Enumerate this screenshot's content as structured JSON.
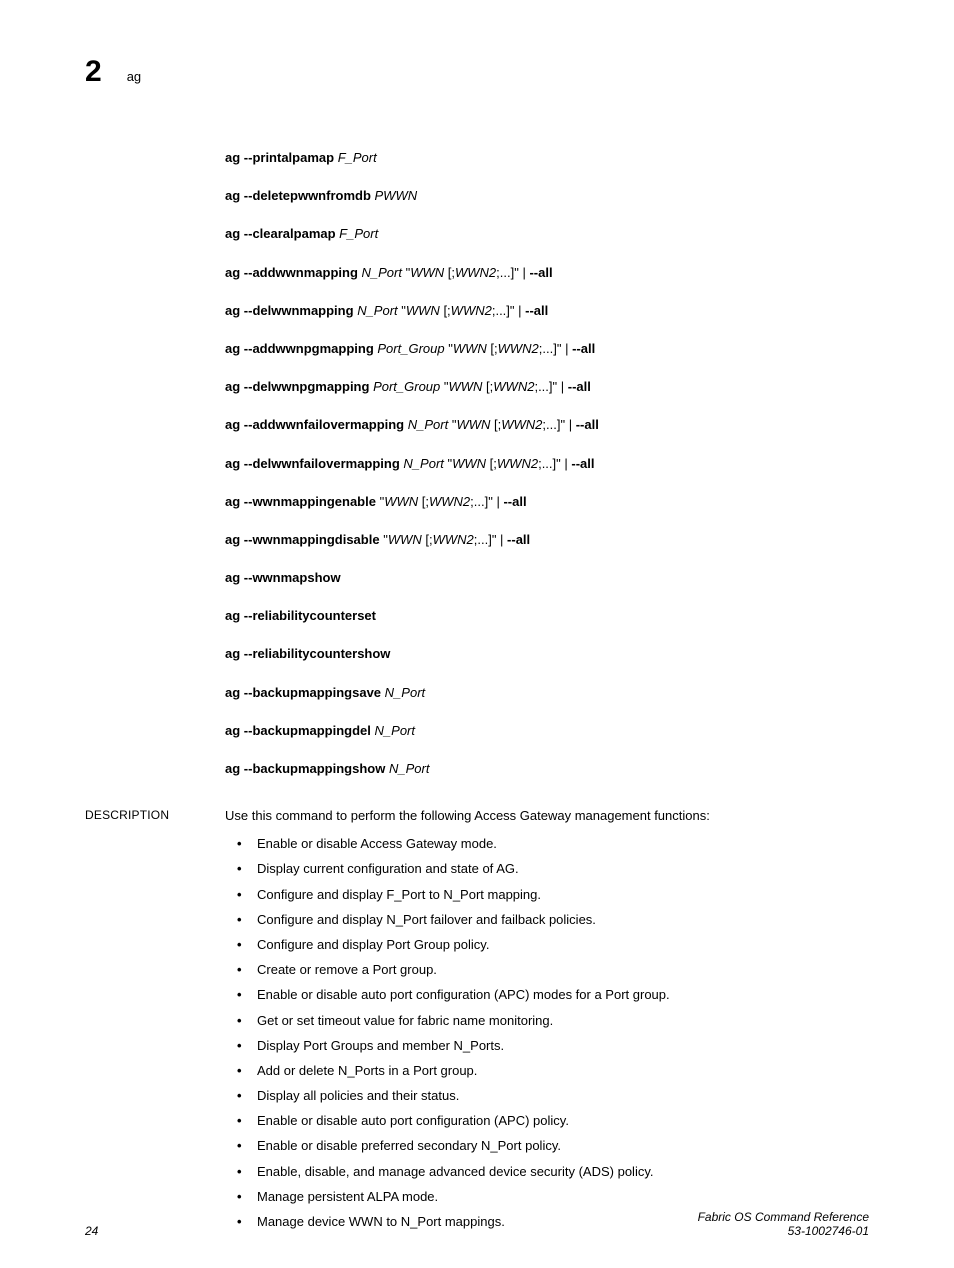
{
  "header": {
    "chapter_number": "2",
    "title": "ag"
  },
  "syntax": [
    [
      {
        "t": "b",
        "v": "ag --printalpamap"
      },
      {
        "t": "n",
        "v": " "
      },
      {
        "t": "i",
        "v": "F_Port"
      }
    ],
    [
      {
        "t": "b",
        "v": "ag --deletepwwnfromdb"
      },
      {
        "t": "n",
        "v": " "
      },
      {
        "t": "i",
        "v": "PWWN"
      }
    ],
    [
      {
        "t": "b",
        "v": "ag --clearalpamap"
      },
      {
        "t": "n",
        "v": " "
      },
      {
        "t": "i",
        "v": "F_Port"
      }
    ],
    [
      {
        "t": "b",
        "v": "ag --addwwnmapping"
      },
      {
        "t": "n",
        "v": " "
      },
      {
        "t": "i",
        "v": "N_Port"
      },
      {
        "t": "n",
        "v": " \""
      },
      {
        "t": "i",
        "v": "WWN"
      },
      {
        "t": "n",
        "v": " [;"
      },
      {
        "t": "i",
        "v": "WWN2"
      },
      {
        "t": "n",
        "v": ";...]\" | "
      },
      {
        "t": "b",
        "v": "--all"
      }
    ],
    [
      {
        "t": "b",
        "v": "ag --delwwnmapping"
      },
      {
        "t": "n",
        "v": " "
      },
      {
        "t": "i",
        "v": "N_Port"
      },
      {
        "t": "n",
        "v": " \""
      },
      {
        "t": "i",
        "v": "WWN"
      },
      {
        "t": "n",
        "v": " [;"
      },
      {
        "t": "i",
        "v": "WWN2"
      },
      {
        "t": "n",
        "v": ";...]\" | "
      },
      {
        "t": "b",
        "v": "--all"
      }
    ],
    [
      {
        "t": "b",
        "v": "ag --addwwnpgmapping"
      },
      {
        "t": "n",
        "v": " "
      },
      {
        "t": "i",
        "v": "Port_Group"
      },
      {
        "t": "n",
        "v": " \""
      },
      {
        "t": "i",
        "v": "WWN"
      },
      {
        "t": "n",
        "v": " [;"
      },
      {
        "t": "i",
        "v": "WWN2"
      },
      {
        "t": "n",
        "v": ";...]\" | "
      },
      {
        "t": "b",
        "v": "--all"
      }
    ],
    [
      {
        "t": "b",
        "v": "ag --delwwnpgmapping"
      },
      {
        "t": "n",
        "v": "  "
      },
      {
        "t": "i",
        "v": "Port_Group"
      },
      {
        "t": "n",
        "v": " \""
      },
      {
        "t": "i",
        "v": "WWN"
      },
      {
        "t": "n",
        "v": " [;"
      },
      {
        "t": "i",
        "v": "WWN2"
      },
      {
        "t": "n",
        "v": ";...]\" | "
      },
      {
        "t": "b",
        "v": "--all"
      }
    ],
    [
      {
        "t": "b",
        "v": "ag --addwwnfailovermapping"
      },
      {
        "t": "n",
        "v": " "
      },
      {
        "t": "i",
        "v": "N_Port"
      },
      {
        "t": "n",
        "v": " \""
      },
      {
        "t": "i",
        "v": "WWN"
      },
      {
        "t": "n",
        "v": " [;"
      },
      {
        "t": "i",
        "v": "WWN2"
      },
      {
        "t": "n",
        "v": ";...]\" | "
      },
      {
        "t": "b",
        "v": "--all"
      }
    ],
    [
      {
        "t": "b",
        "v": "ag --delwwnfailovermapping"
      },
      {
        "t": "n",
        "v": " "
      },
      {
        "t": "i",
        "v": "N_Port"
      },
      {
        "t": "n",
        "v": " \""
      },
      {
        "t": "i",
        "v": "WWN"
      },
      {
        "t": "n",
        "v": " [;"
      },
      {
        "t": "i",
        "v": "WWN2"
      },
      {
        "t": "n",
        "v": ";...]\" | "
      },
      {
        "t": "b",
        "v": "--all"
      }
    ],
    [
      {
        "t": "b",
        "v": "ag --wwnmappingenable"
      },
      {
        "t": "n",
        "v": " \""
      },
      {
        "t": "i",
        "v": "WWN"
      },
      {
        "t": "n",
        "v": " [;"
      },
      {
        "t": "i",
        "v": "WWN2"
      },
      {
        "t": "n",
        "v": ";...]\" | "
      },
      {
        "t": "b",
        "v": "--all"
      }
    ],
    [
      {
        "t": "b",
        "v": "ag --wwnmappingdisable"
      },
      {
        "t": "n",
        "v": " \""
      },
      {
        "t": "i",
        "v": "WWN"
      },
      {
        "t": "n",
        "v": " [;"
      },
      {
        "t": "i",
        "v": "WWN2"
      },
      {
        "t": "n",
        "v": ";...]\" | "
      },
      {
        "t": "b",
        "v": "--all"
      }
    ],
    [
      {
        "t": "b",
        "v": "ag --wwnmapshow"
      }
    ],
    [
      {
        "t": "b",
        "v": "ag --reliabilitycounterset"
      }
    ],
    [
      {
        "t": "b",
        "v": "ag --reliabilitycountershow"
      }
    ],
    [
      {
        "t": "b",
        "v": "ag --backupmappingsave"
      },
      {
        "t": "n",
        "v": " "
      },
      {
        "t": "i",
        "v": "N_Port"
      }
    ],
    [
      {
        "t": "b",
        "v": "ag --backupmappingdel"
      },
      {
        "t": "n",
        "v": " "
      },
      {
        "t": "i",
        "v": "N_Port"
      }
    ],
    [
      {
        "t": "b",
        "v": "ag --backupmappingshow"
      },
      {
        "t": "n",
        "v": " "
      },
      {
        "t": "i",
        "v": "N_Port"
      }
    ]
  ],
  "description": {
    "label": "DESCRIPTION",
    "intro": "Use this command to perform the following Access Gateway management functions:",
    "bullets": [
      "Enable or disable Access Gateway mode.",
      "Display current configuration and state of AG.",
      "Configure and display F_Port to N_Port mapping.",
      "Configure and display N_Port failover and failback policies.",
      "Configure and display Port Group policy.",
      "Create or remove a Port group.",
      "Enable or disable auto port configuration (APC) modes for a Port group.",
      "Get or set timeout value for fabric name monitoring.",
      "Display Port Groups and member N_Ports.",
      "Add or delete N_Ports in a Port group.",
      "Display all policies and their status.",
      "Enable or disable auto port configuration (APC) policy.",
      "Enable or disable preferred secondary N_Port policy.",
      "Enable, disable, and manage advanced device security (ADS) policy.",
      "Manage persistent ALPA mode.",
      "Manage device WWN to N_Port mappings."
    ]
  },
  "footer": {
    "page_number": "24",
    "doc_title": "Fabric OS Command Reference",
    "doc_number": "53-1002746-01"
  }
}
